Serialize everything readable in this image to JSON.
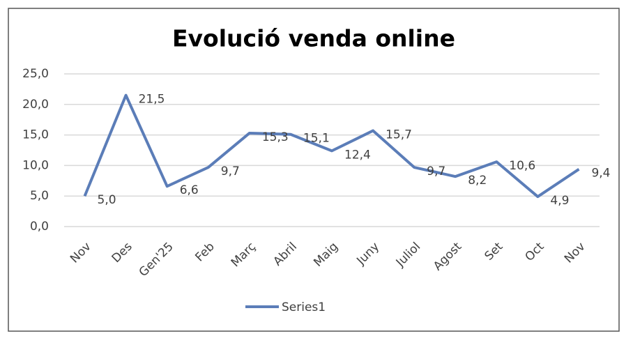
{
  "chart_data": {
    "type": "line",
    "title": "Evolució venda online",
    "categories": [
      "Nov",
      "Des",
      "Gen'25",
      "Feb",
      "Març",
      "Abril",
      "Maig",
      "Juny",
      "Juliol",
      "Agost",
      "Set",
      "Oct",
      "Nov"
    ],
    "series": [
      {
        "name": "Series1",
        "color": "#5b7db8",
        "values": [
          5.0,
          21.5,
          6.6,
          9.7,
          15.3,
          15.1,
          12.4,
          15.7,
          9.7,
          8.2,
          10.6,
          4.9,
          9.4
        ],
        "value_labels": [
          "5,0",
          "21,5",
          "6,6",
          "9,7",
          "15,3",
          "15,1",
          "12,4",
          "15,7",
          "9,7",
          "8,2",
          "10,6",
          "4,9",
          "9,4"
        ]
      }
    ],
    "ylim": [
      0,
      25
    ],
    "yticks": [
      {
        "value": 0,
        "label": "0,0"
      },
      {
        "value": 5,
        "label": "5,0"
      },
      {
        "value": 10,
        "label": "10,0"
      },
      {
        "value": 15,
        "label": "15,0"
      },
      {
        "value": 20,
        "label": "20,0"
      },
      {
        "value": 25,
        "label": "25,0"
      }
    ],
    "grid": true,
    "legend": "bottom"
  }
}
